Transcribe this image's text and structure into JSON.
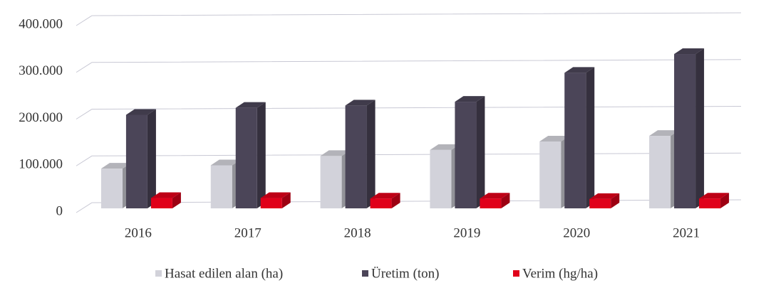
{
  "chart_data": {
    "type": "bar3d",
    "categories": [
      "2016",
      "2017",
      "2018",
      "2019",
      "2020",
      "2021"
    ],
    "series": [
      {
        "name": "Hasat edilen alan (ha)",
        "color": "#d2d2da",
        "values": [
          85000,
          92000,
          112000,
          125000,
          143000,
          155000
        ]
      },
      {
        "name": "Üretim (ton)",
        "color": "#4b4558",
        "values": [
          200000,
          215000,
          220000,
          228000,
          290000,
          330000
        ]
      },
      {
        "name": "Verim (hg/ha)",
        "color": "#e0001a",
        "values": [
          22000,
          22000,
          21000,
          21000,
          20000,
          21000
        ]
      }
    ],
    "ylim": [
      0,
      400000
    ],
    "yticks": [
      0,
      {
        "value": 100000,
        "label": "100.000"
      },
      {
        "value": 200000,
        "label": "200.000"
      },
      {
        "value": 300000,
        "label": "300.000"
      },
      {
        "value": 400000,
        "label": "400.000"
      }
    ],
    "grid": true,
    "legend": "bottom"
  }
}
